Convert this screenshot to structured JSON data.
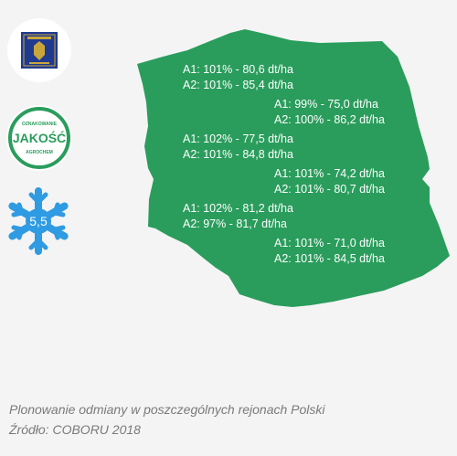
{
  "colors": {
    "map_fill": "#2a9d5c",
    "text_on_map": "#ffffff",
    "caption": "#7a7a7a",
    "snowflake": "#2f9be2",
    "badge_green": "#2a9d5c",
    "logo_navy": "#1f3a8f"
  },
  "badges": {
    "logo": {
      "icon": "crest-logo-icon"
    },
    "quality_stamp": {
      "top_text": "OZNAKOWANIE",
      "main_text": "JAKOŚĆ",
      "bottom_text": "AGROCHEM"
    },
    "frost_resistance": {
      "icon": "snowflake-icon",
      "value": "5,5"
    }
  },
  "regions": [
    {
      "a1": "A1: 101% - 80,6 dt/ha",
      "a2": "A2: 101% - 85,4 dt/ha"
    },
    {
      "a1": "A1: 99% - 75,0 dt/ha",
      "a2": "A2: 100% - 86,2 dt/ha"
    },
    {
      "a1": "A1: 102% - 77,5 dt/ha",
      "a2": "A2: 101% - 84,8 dt/ha"
    },
    {
      "a1": "A1: 101% - 74,2 dt/ha",
      "a2": "A2: 101% - 80,7 dt/ha"
    },
    {
      "a1": "A1: 102% - 81,2 dt/ha",
      "a2": "A2: 97% - 81,7 dt/ha"
    },
    {
      "a1": "A1: 101% - 71,0 dt/ha",
      "a2": "A2: 101% - 84,5 dt/ha"
    }
  ],
  "caption": {
    "line1": "Plonowanie odmiany w poszczególnych rejonach Polski",
    "line2": "Źródło: COBORU 2018"
  }
}
